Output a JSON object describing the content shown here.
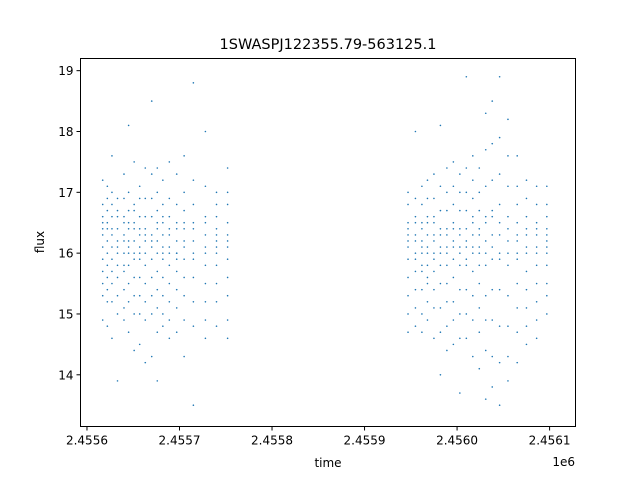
{
  "chart_data": {
    "type": "scatter",
    "title": "1SWASPJ122355.79-563125.1",
    "xlabel": "time",
    "ylabel": "flux",
    "x_offset_label": "1e6",
    "xlim": [
      2455593,
      2456128
    ],
    "ylim": [
      13.15,
      19.2
    ],
    "x_ticks": [
      2455600,
      2455700,
      2455800,
      2455900,
      2456000,
      2456100
    ],
    "x_tick_labels": [
      "2.4556",
      "2.4557",
      "2.4558",
      "2.4559",
      "2.4560",
      "2.4561"
    ],
    "y_ticks": [
      14,
      15,
      16,
      17,
      18,
      19
    ],
    "y_tick_labels": [
      "14",
      "15",
      "16",
      "17",
      "18",
      "19"
    ],
    "grid": false,
    "marker_color": "#1f77b4",
    "series": [
      {
        "values": [
          {
            "t": 2455617,
            "flux": [
              17.2,
              16.8,
              16.6,
              16.4,
              16.3,
              16.1,
              15.9,
              15.7,
              15.5,
              15.3,
              14.9,
              16.5
            ]
          },
          {
            "t": 2455622,
            "flux": [
              17.1,
              16.7,
              16.5,
              16.2,
              16.0,
              15.8,
              15.6,
              15.4,
              15.2,
              14.8,
              16.4,
              16.9
            ]
          },
          {
            "t": 2455627,
            "flux": [
              17.6,
              17.0,
              16.6,
              16.3,
              16.1,
              15.9,
              15.7,
              15.5,
              14.6,
              16.4,
              16.8,
              15.2
            ]
          },
          {
            "t": 2455633,
            "flux": [
              16.9,
              16.6,
              16.4,
              16.2,
              16.0,
              15.8,
              15.6,
              15.3,
              15.0,
              13.9,
              16.7,
              16.1
            ]
          },
          {
            "t": 2455640,
            "flux": [
              17.3,
              16.9,
              16.5,
              16.3,
              16.0,
              15.7,
              15.4,
              15.1,
              14.9,
              16.6,
              16.2,
              15.8
            ]
          },
          {
            "t": 2455645,
            "flux": [
              18.1,
              17.0,
              16.7,
              16.4,
              16.2,
              16.0,
              15.8,
              15.5,
              15.2,
              14.7,
              16.5,
              16.1
            ]
          },
          {
            "t": 2455651,
            "flux": [
              17.5,
              16.8,
              16.5,
              16.2,
              15.9,
              15.6,
              15.3,
              15.0,
              14.4,
              16.4,
              16.0,
              16.7
            ]
          },
          {
            "t": 2455657,
            "flux": [
              17.1,
              16.9,
              16.6,
              16.4,
              16.1,
              15.9,
              15.6,
              15.3,
              15.0,
              14.5,
              16.3,
              16.0
            ]
          },
          {
            "t": 2455663,
            "flux": [
              17.4,
              16.9,
              16.6,
              16.4,
              16.2,
              16.0,
              15.8,
              15.5,
              15.2,
              14.9,
              14.2,
              16.3
            ]
          },
          {
            "t": 2455670,
            "flux": [
              18.5,
              17.3,
              16.9,
              16.6,
              16.3,
              16.1,
              15.9,
              15.6,
              15.3,
              15.0,
              14.3,
              16.2
            ]
          },
          {
            "t": 2455676,
            "flux": [
              17.4,
              17.0,
              16.7,
              16.5,
              16.2,
              16.0,
              15.7,
              15.4,
              15.1,
              14.7,
              13.9,
              16.4
            ]
          },
          {
            "t": 2455682,
            "flux": [
              17.2,
              16.8,
              16.5,
              16.3,
              16.1,
              15.9,
              15.6,
              15.3,
              15.0,
              14.8,
              16.6,
              16.0
            ]
          },
          {
            "t": 2455689,
            "flux": [
              17.5,
              16.9,
              16.6,
              16.3,
              16.0,
              15.8,
              15.5,
              15.2,
              14.9,
              14.6,
              16.4,
              16.1
            ]
          },
          {
            "t": 2455697,
            "flux": [
              17.3,
              16.8,
              16.5,
              16.2,
              16.0,
              15.7,
              15.4,
              15.1,
              14.7,
              16.4,
              16.0,
              15.9
            ]
          },
          {
            "t": 2455705,
            "flux": [
              17.6,
              17.0,
              16.7,
              16.4,
              16.1,
              15.9,
              15.6,
              15.3,
              14.9,
              14.3,
              16.5,
              16.2
            ]
          },
          {
            "t": 2455715,
            "flux": [
              18.8,
              17.2,
              16.8,
              16.5,
              16.2,
              15.9,
              15.6,
              15.2,
              14.8,
              13.5,
              16.4,
              16.0
            ]
          },
          {
            "t": 2455728,
            "flux": [
              18.0,
              17.1,
              16.6,
              16.3,
              16.0,
              15.8,
              15.5,
              15.2,
              14.9,
              14.6,
              16.5,
              16.1
            ]
          },
          {
            "t": 2455740,
            "flux": [
              17.0,
              16.8,
              16.6,
              16.4,
              16.2,
              16.0,
              15.8,
              15.5,
              15.2,
              14.8,
              16.3,
              16.1
            ]
          },
          {
            "t": 2455752,
            "flux": [
              17.4,
              17.0,
              16.8,
              16.5,
              16.3,
              16.1,
              15.9,
              15.6,
              15.3,
              14.9,
              14.6,
              16.2
            ]
          },
          {
            "t": 2455947,
            "flux": [
              17.0,
              16.8,
              16.5,
              16.3,
              16.1,
              15.9,
              15.6,
              15.3,
              15.0,
              14.7,
              16.4,
              16.2
            ]
          },
          {
            "t": 2455955,
            "flux": [
              18.0,
              16.9,
              16.6,
              16.3,
              16.0,
              15.7,
              15.4,
              15.1,
              14.8,
              16.5,
              16.2,
              15.9
            ]
          },
          {
            "t": 2455962,
            "flux": [
              17.1,
              16.8,
              16.5,
              16.2,
              16.0,
              15.7,
              15.4,
              15.0,
              14.7,
              16.4,
              16.1,
              15.8
            ]
          },
          {
            "t": 2455968,
            "flux": [
              17.2,
              16.9,
              16.6,
              16.3,
              16.1,
              15.8,
              15.5,
              15.2,
              14.9,
              16.5,
              16.0,
              15.6
            ]
          },
          {
            "t": 2455975,
            "flux": [
              17.3,
              16.9,
              16.6,
              16.3,
              16.0,
              15.7,
              15.4,
              15.1,
              14.6,
              16.5,
              16.2,
              15.9
            ]
          },
          {
            "t": 2455982,
            "flux": [
              18.1,
              17.1,
              16.7,
              16.4,
              16.1,
              15.8,
              15.5,
              15.1,
              14.7,
              14.0,
              16.3,
              16.0
            ]
          },
          {
            "t": 2455989,
            "flux": [
              17.4,
              17.0,
              16.7,
              16.4,
              16.1,
              15.8,
              15.5,
              15.2,
              14.8,
              14.4,
              16.3,
              16.0
            ]
          },
          {
            "t": 2455996,
            "flux": [
              17.5,
              17.1,
              16.8,
              16.5,
              16.2,
              15.9,
              15.6,
              15.2,
              14.9,
              14.5,
              16.4,
              16.1
            ]
          },
          {
            "t": 2456003,
            "flux": [
              17.3,
              17.0,
              16.7,
              16.4,
              16.1,
              15.8,
              15.4,
              15.0,
              14.6,
              13.7,
              16.3,
              16.0
            ]
          },
          {
            "t": 2456010,
            "flux": [
              18.9,
              17.4,
              17.0,
              16.7,
              16.4,
              16.1,
              15.8,
              15.4,
              15.0,
              14.6,
              16.2,
              15.9
            ]
          },
          {
            "t": 2456017,
            "flux": [
              17.6,
              17.2,
              16.9,
              16.6,
              16.3,
              16.0,
              15.7,
              15.3,
              14.9,
              14.3,
              16.5,
              16.1
            ]
          },
          {
            "t": 2456024,
            "flux": [
              17.4,
              17.0,
              16.7,
              16.4,
              16.1,
              15.8,
              15.5,
              15.1,
              14.7,
              14.1,
              16.3,
              16.0
            ]
          },
          {
            "t": 2456031,
            "flux": [
              18.3,
              17.7,
              17.1,
              16.6,
              16.2,
              15.8,
              15.3,
              14.9,
              14.4,
              13.6,
              16.5,
              16.0
            ]
          },
          {
            "t": 2456038,
            "flux": [
              18.5,
              17.8,
              17.2,
              16.7,
              16.3,
              15.9,
              15.4,
              14.9,
              14.3,
              13.8,
              16.6,
              16.1
            ]
          },
          {
            "t": 2456046,
            "flux": [
              18.9,
              17.9,
              17.3,
              16.8,
              16.3,
              15.9,
              15.4,
              14.8,
              14.2,
              13.5,
              16.5,
              16.0
            ]
          },
          {
            "t": 2456055,
            "flux": [
              18.2,
              17.6,
              17.1,
              16.6,
              16.2,
              15.8,
              15.3,
              14.8,
              14.3,
              13.9,
              16.4,
              16.0
            ]
          },
          {
            "t": 2456065,
            "flux": [
              17.6,
              17.1,
              16.8,
              16.5,
              16.2,
              15.9,
              15.5,
              15.1,
              14.7,
              14.2,
              16.3,
              16.0
            ]
          },
          {
            "t": 2456075,
            "flux": [
              17.2,
              16.9,
              16.6,
              16.3,
              16.0,
              15.7,
              15.4,
              15.1,
              14.8,
              14.5,
              16.4,
              16.1
            ]
          },
          {
            "t": 2456086,
            "flux": [
              17.1,
              16.8,
              16.5,
              16.3,
              16.1,
              15.8,
              15.5,
              15.2,
              14.9,
              14.6,
              16.4,
              16.0
            ]
          },
          {
            "t": 2456097,
            "flux": [
              17.1,
              16.8,
              16.6,
              16.4,
              16.2,
              16.0,
              15.8,
              15.5,
              15.3,
              15.0,
              16.3,
              16.1
            ]
          }
        ]
      }
    ]
  }
}
